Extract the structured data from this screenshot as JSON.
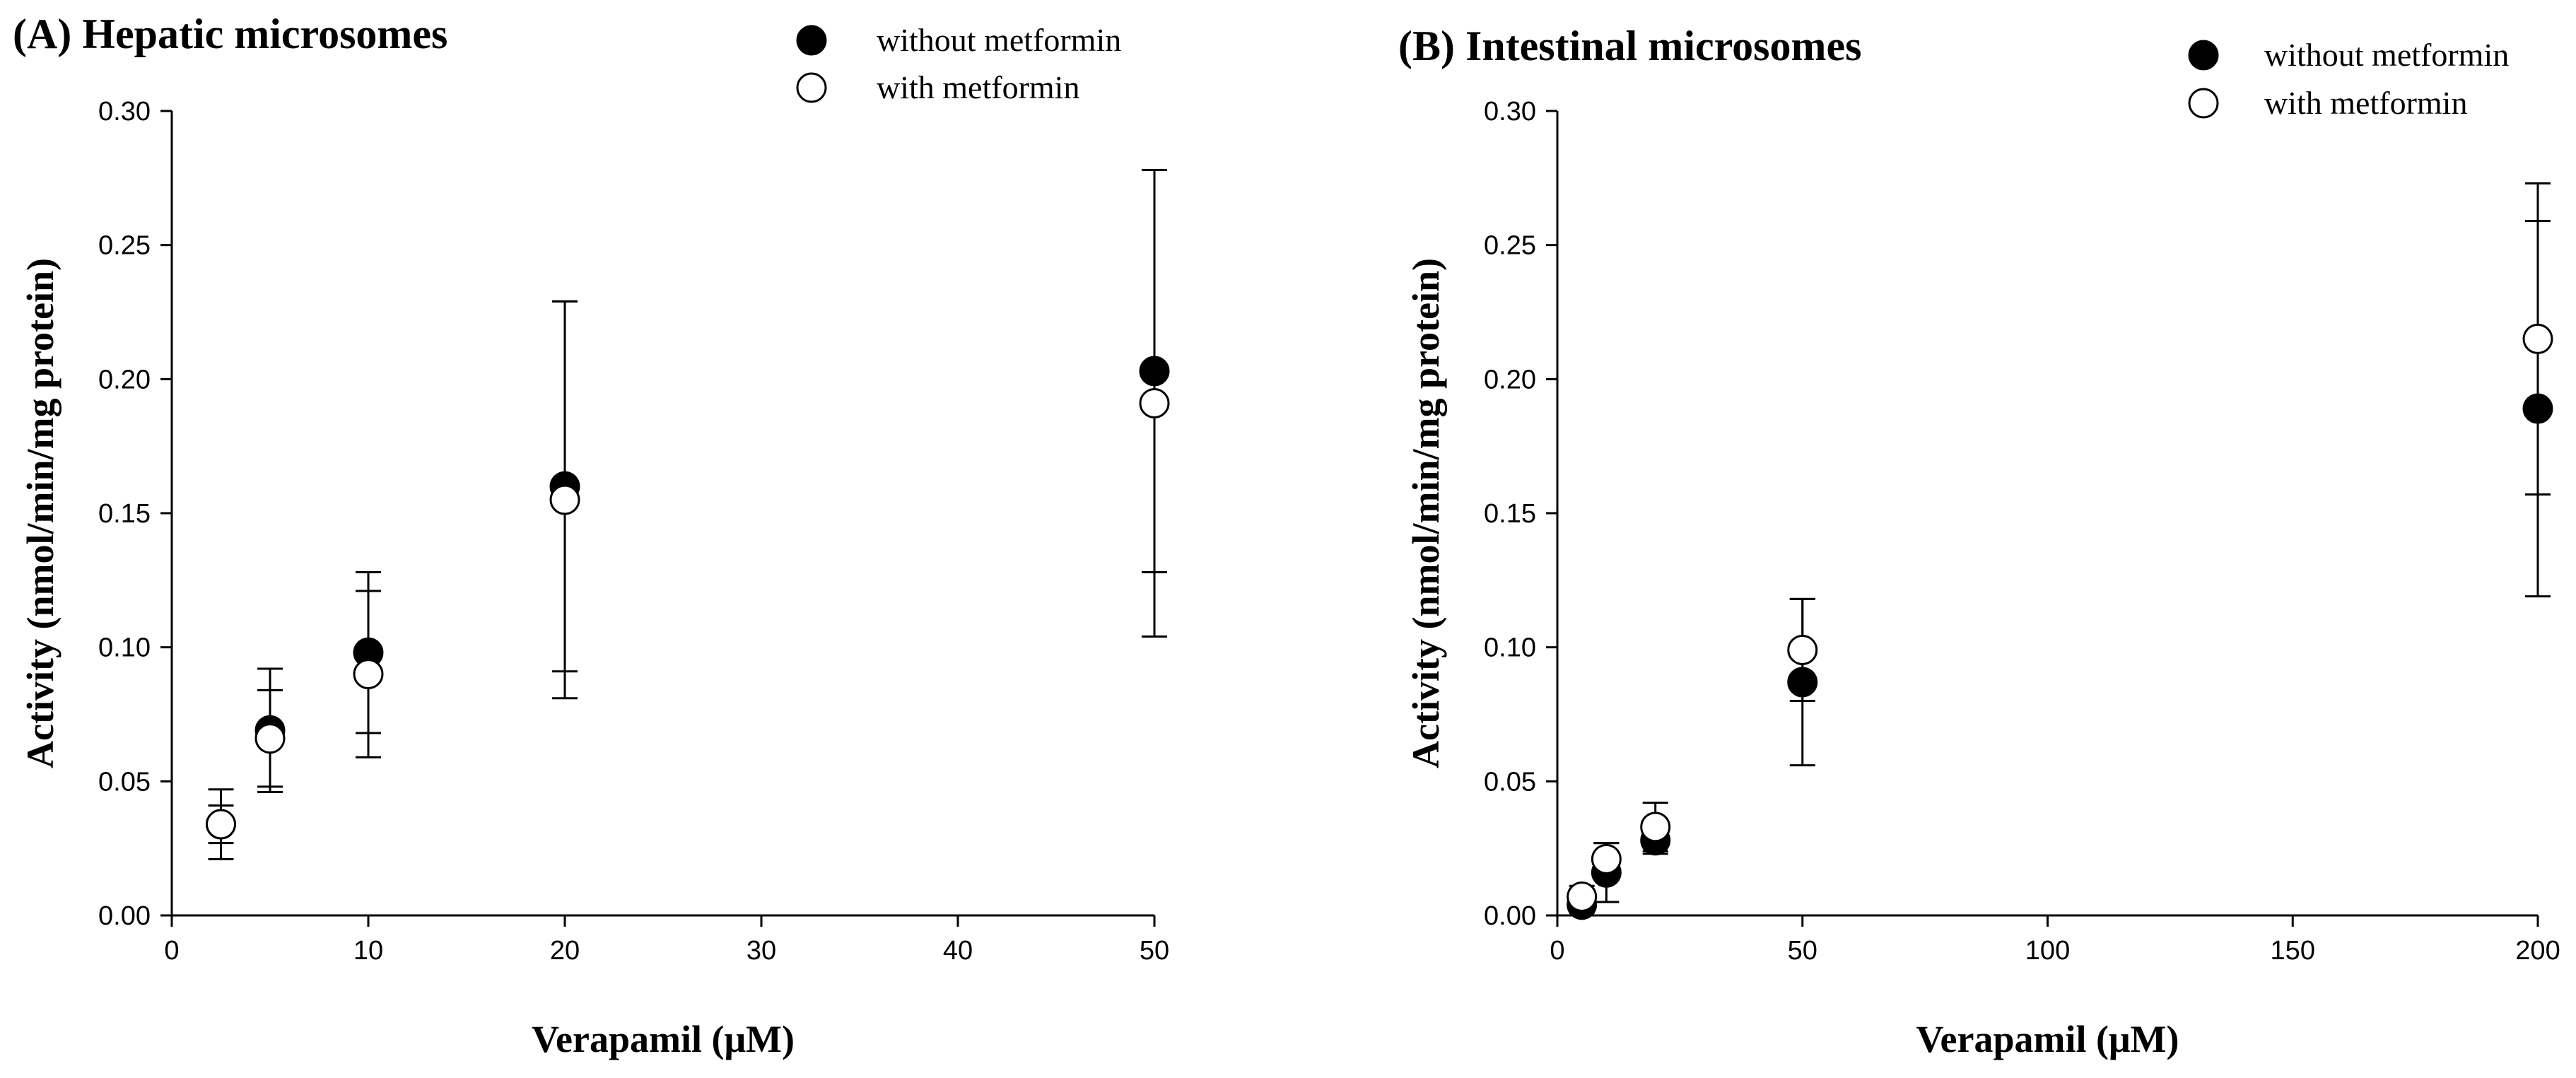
{
  "chart_data": [
    {
      "type": "scatter",
      "title": "(A) Hepatic microsomes",
      "xlabel": "Verapamil (μM)",
      "ylabel": "Activity (nmol/min/mg protein)",
      "xlim": [
        0,
        50
      ],
      "ylim": [
        0,
        0.3
      ],
      "xticks": [
        0,
        10,
        20,
        30,
        40,
        50
      ],
      "xtick_labels": [
        "0",
        "10",
        "20",
        "30",
        "40",
        "50"
      ],
      "yticks": [
        0,
        0.05,
        0.1,
        0.15,
        0.2,
        0.25,
        0.3
      ],
      "ytick_labels": [
        "0.00",
        "0.05",
        "0.10",
        "0.15",
        "0.20",
        "0.25",
        "0.30"
      ],
      "legend_position": "top-right",
      "series": [
        {
          "name": "without metformin",
          "marker": "filled-circle",
          "x": [
            2.5,
            5,
            10,
            20,
            50
          ],
          "y": [
            0.034,
            0.069,
            0.098,
            0.16,
            0.203
          ],
          "err": [
            0.007,
            0.023,
            0.03,
            0.069,
            0.075
          ]
        },
        {
          "name": "with metformin",
          "marker": "open-circle",
          "x": [
            2.5,
            5,
            10,
            20,
            50
          ],
          "y": [
            0.034,
            0.066,
            0.09,
            0.155,
            0.191
          ],
          "err": [
            0.013,
            0.018,
            0.031,
            0.074,
            0.087
          ]
        }
      ]
    },
    {
      "type": "scatter",
      "title": "(B) Intestinal microsomes",
      "xlabel": "Verapamil (μM)",
      "ylabel": "Activity (nmol/min/mg protein)",
      "xlim": [
        0,
        200
      ],
      "ylim": [
        0,
        0.3
      ],
      "xticks": [
        0,
        50,
        100,
        150,
        200
      ],
      "xtick_labels": [
        "0",
        "50",
        "100",
        "150",
        "200"
      ],
      "yticks": [
        0,
        0.05,
        0.1,
        0.15,
        0.2,
        0.25,
        0.3
      ],
      "ytick_labels": [
        "0.00",
        "0.05",
        "0.10",
        "0.15",
        "0.20",
        "0.25",
        "0.30"
      ],
      "legend_position": "top-right",
      "series": [
        {
          "name": "without metformin",
          "marker": "filled-circle",
          "x": [
            5,
            10,
            20,
            50,
            200
          ],
          "y": [
            0.004,
            0.016,
            0.028,
            0.087,
            0.189
          ],
          "err": [
            0.003,
            0.011,
            0.005,
            0.031,
            0.07
          ]
        },
        {
          "name": "with metformin",
          "marker": "open-circle",
          "x": [
            5,
            10,
            20,
            50,
            200
          ],
          "y": [
            0.007,
            0.021,
            0.033,
            0.099,
            0.215
          ],
          "err": [
            0.004,
            0.006,
            0.009,
            0.019,
            0.058
          ]
        }
      ]
    }
  ]
}
